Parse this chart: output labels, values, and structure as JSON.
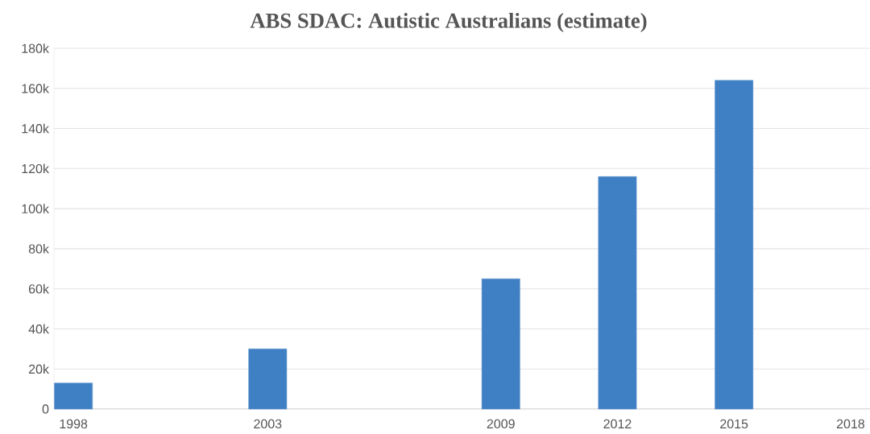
{
  "chart_data": {
    "type": "bar",
    "title": "ABS SDAC: Autistic Australians (estimate)",
    "x": [
      1998,
      2003,
      2009,
      2012,
      2015
    ],
    "values": [
      13000,
      30000,
      65000,
      116000,
      164000
    ],
    "color": "#3f7fc4",
    "xlim": [
      1997.5,
      2018.5
    ],
    "xticks": [
      1998,
      2003,
      2009,
      2012,
      2015,
      2018
    ],
    "ylim": [
      0,
      180000
    ],
    "yticks": [
      0,
      {
        "value": 20000,
        "label": "20k"
      },
      {
        "value": 40000,
        "label": "40k"
      },
      {
        "value": 60000,
        "label": "60k"
      },
      {
        "value": 80000,
        "label": "80k"
      },
      {
        "value": 100000,
        "label": "100k"
      },
      {
        "value": 120000,
        "label": "120k"
      },
      {
        "value": 140000,
        "label": "140k"
      },
      {
        "value": 160000,
        "label": "160k"
      },
      {
        "value": 180000,
        "label": "180k"
      }
    ],
    "grid": "y"
  }
}
